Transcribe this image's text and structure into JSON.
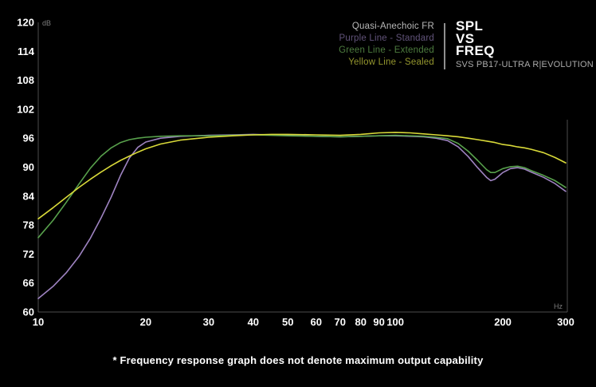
{
  "header": {
    "legend": {
      "title": "Quasi-Anechoic FR",
      "title_color": "#b8b8b8",
      "items": [
        {
          "label": "Purple Line - Standard",
          "color": "#61537a"
        },
        {
          "label": "Green Line - Extended",
          "color": "#4d7c3f"
        },
        {
          "label": "Yellow Line - Sealed",
          "color": "#94962e"
        }
      ]
    },
    "title_lines": [
      "SPL",
      "VS",
      "FREQ"
    ],
    "subtitle": "SVS PB17-ULTRA R|EVOLUTION"
  },
  "footer": {
    "note": "* Frequency response graph does not denote maximum output capability"
  },
  "chart_data": {
    "type": "line",
    "x_scale": "log",
    "xlim": [
      10,
      300
    ],
    "ylim": [
      60,
      120
    ],
    "x_ticks": [
      10,
      20,
      30,
      40,
      50,
      60,
      70,
      80,
      90,
      100,
      200,
      300
    ],
    "y_ticks": [
      120,
      114,
      108,
      102,
      96,
      90,
      84,
      78,
      72,
      66,
      60
    ],
    "units": {
      "x": "Hz",
      "y": "dB"
    },
    "grid": false,
    "legend_position": "top-right",
    "series": [
      {
        "id": "standard",
        "name": "Purple Line - Standard",
        "color": "#9e83c1",
        "points": [
          [
            10,
            62.8
          ],
          [
            11,
            65.3
          ],
          [
            12,
            68.2
          ],
          [
            13,
            71.5
          ],
          [
            14,
            75.3
          ],
          [
            15,
            79.5
          ],
          [
            16,
            83.8
          ],
          [
            17,
            88.3
          ],
          [
            18,
            91.9
          ],
          [
            19,
            94.1
          ],
          [
            20,
            95.2
          ],
          [
            22,
            96.0
          ],
          [
            25,
            96.4
          ],
          [
            30,
            96.6
          ],
          [
            35,
            96.7
          ],
          [
            40,
            96.8
          ],
          [
            45,
            96.7
          ],
          [
            50,
            96.6
          ],
          [
            60,
            96.4
          ],
          [
            70,
            96.3
          ],
          [
            80,
            96.4
          ],
          [
            90,
            96.5
          ],
          [
            100,
            96.5
          ],
          [
            110,
            96.4
          ],
          [
            120,
            96.3
          ],
          [
            130,
            96.0
          ],
          [
            140,
            95.5
          ],
          [
            150,
            94.2
          ],
          [
            160,
            92.2
          ],
          [
            170,
            89.9
          ],
          [
            180,
            87.9
          ],
          [
            185,
            87.2
          ],
          [
            190,
            87.5
          ],
          [
            195,
            88.2
          ],
          [
            200,
            88.9
          ],
          [
            210,
            89.7
          ],
          [
            220,
            89.9
          ],
          [
            230,
            89.6
          ],
          [
            240,
            89.0
          ],
          [
            260,
            87.9
          ],
          [
            280,
            86.6
          ],
          [
            300,
            85.0
          ]
        ]
      },
      {
        "id": "extended",
        "name": "Green Line - Extended",
        "color": "#58a14c",
        "points": [
          [
            10,
            75.4
          ],
          [
            11,
            79.0
          ],
          [
            12,
            82.8
          ],
          [
            13,
            86.5
          ],
          [
            14,
            89.8
          ],
          [
            15,
            92.3
          ],
          [
            16,
            94.0
          ],
          [
            17,
            95.1
          ],
          [
            18,
            95.7
          ],
          [
            19,
            96.0
          ],
          [
            20,
            96.2
          ],
          [
            22,
            96.4
          ],
          [
            25,
            96.5
          ],
          [
            30,
            96.5
          ],
          [
            35,
            96.6
          ],
          [
            40,
            96.7
          ],
          [
            45,
            96.6
          ],
          [
            50,
            96.5
          ],
          [
            60,
            96.4
          ],
          [
            70,
            96.3
          ],
          [
            80,
            96.4
          ],
          [
            90,
            96.5
          ],
          [
            100,
            96.6
          ],
          [
            110,
            96.5
          ],
          [
            120,
            96.4
          ],
          [
            130,
            96.2
          ],
          [
            140,
            95.9
          ],
          [
            150,
            94.9
          ],
          [
            160,
            93.3
          ],
          [
            170,
            91.4
          ],
          [
            180,
            89.5
          ],
          [
            185,
            88.9
          ],
          [
            190,
            88.9
          ],
          [
            195,
            89.3
          ],
          [
            200,
            89.7
          ],
          [
            210,
            90.1
          ],
          [
            220,
            90.2
          ],
          [
            230,
            89.9
          ],
          [
            240,
            89.3
          ],
          [
            260,
            88.3
          ],
          [
            280,
            87.2
          ],
          [
            300,
            85.8
          ]
        ]
      },
      {
        "id": "sealed",
        "name": "Yellow Line - Sealed",
        "color": "#d9da39",
        "points": [
          [
            10,
            79.3
          ],
          [
            11,
            81.6
          ],
          [
            12,
            83.8
          ],
          [
            13,
            85.8
          ],
          [
            14,
            87.5
          ],
          [
            15,
            89.0
          ],
          [
            16,
            90.3
          ],
          [
            17,
            91.4
          ],
          [
            18,
            92.3
          ],
          [
            19,
            93.1
          ],
          [
            20,
            93.8
          ],
          [
            22,
            94.8
          ],
          [
            25,
            95.6
          ],
          [
            30,
            96.2
          ],
          [
            35,
            96.5
          ],
          [
            40,
            96.7
          ],
          [
            45,
            96.8
          ],
          [
            50,
            96.8
          ],
          [
            60,
            96.7
          ],
          [
            70,
            96.6
          ],
          [
            80,
            96.8
          ],
          [
            90,
            97.1
          ],
          [
            100,
            97.2
          ],
          [
            110,
            97.1
          ],
          [
            120,
            96.9
          ],
          [
            130,
            96.7
          ],
          [
            140,
            96.5
          ],
          [
            150,
            96.3
          ],
          [
            160,
            96.0
          ],
          [
            170,
            95.7
          ],
          [
            180,
            95.4
          ],
          [
            190,
            95.1
          ],
          [
            200,
            94.7
          ],
          [
            210,
            94.5
          ],
          [
            220,
            94.2
          ],
          [
            230,
            94.0
          ],
          [
            240,
            93.7
          ],
          [
            260,
            93.0
          ],
          [
            280,
            92.0
          ],
          [
            300,
            90.9
          ]
        ]
      }
    ]
  }
}
